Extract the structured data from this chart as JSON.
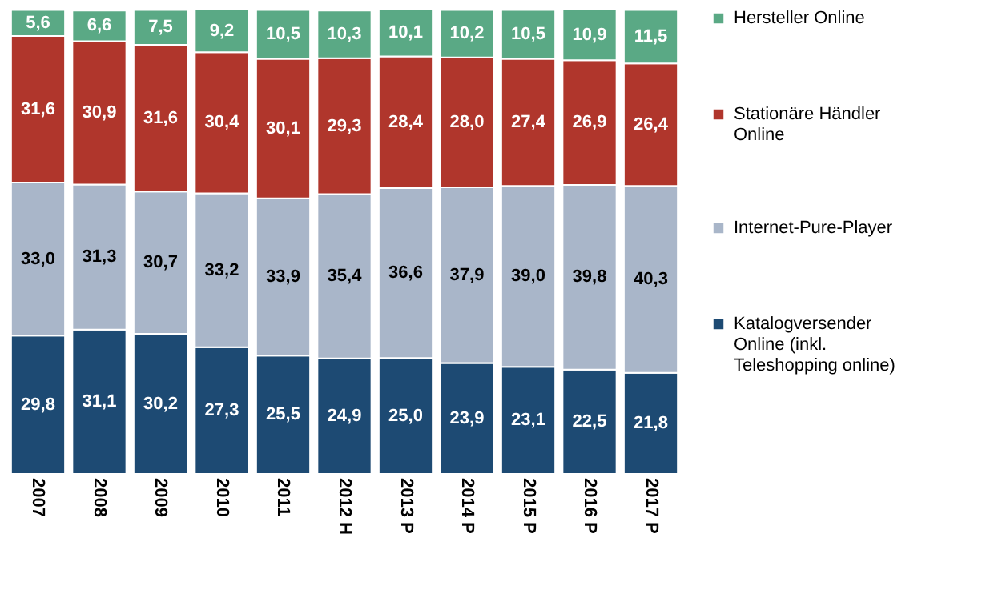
{
  "chart_data": {
    "type": "bar",
    "stacked": true,
    "legend": "right",
    "categories": [
      "2007",
      "2008",
      "2009",
      "2010",
      "2011",
      "2012 H",
      "2013 P",
      "2014 P",
      "2015 P",
      "2016 P",
      "2017 P"
    ],
    "series": [
      {
        "name": "Katalogversender Online (inkl. Teleshopping online)",
        "color": "#1d4a73",
        "values": [
          29.8,
          31.1,
          30.2,
          27.3,
          25.5,
          24.9,
          25.0,
          23.9,
          23.1,
          22.5,
          21.8
        ],
        "value_labels": [
          "29,8",
          "31,1",
          "30,2",
          "27,3",
          "25,5",
          "24,9",
          "25,0",
          "23,9",
          "23,1",
          "22,5",
          "21,8"
        ]
      },
      {
        "name": "Internet-Pure-Player",
        "color": "#a9b6c9",
        "values": [
          33.0,
          31.3,
          30.7,
          33.2,
          33.9,
          35.4,
          36.6,
          37.9,
          39.0,
          39.8,
          40.3
        ],
        "value_labels": [
          "33,0",
          "31,3",
          "30,7",
          "33,2",
          "33,9",
          "35,4",
          "36,6",
          "37,9",
          "39,0",
          "39,8",
          "40,3"
        ]
      },
      {
        "name": "Stationäre Händler Online",
        "color": "#b0362c",
        "values": [
          31.6,
          30.9,
          31.6,
          30.4,
          30.1,
          29.3,
          28.4,
          28.0,
          27.4,
          26.9,
          26.4
        ],
        "value_labels": [
          "31,6",
          "30,9",
          "31,6",
          "30,4",
          "30,1",
          "29,3",
          "28,4",
          "28,0",
          "27,4",
          "26,9",
          "26,4"
        ]
      },
      {
        "name": "Hersteller Online",
        "color": "#5aa985",
        "values": [
          5.6,
          6.6,
          7.5,
          9.2,
          10.5,
          10.3,
          10.1,
          10.2,
          10.5,
          10.9,
          11.5
        ],
        "value_labels": [
          "5,6",
          "6,6",
          "7,5",
          "9,2",
          "10,5",
          "10,3",
          "10,1",
          "10,2",
          "10,5",
          "10,9",
          "11,5"
        ]
      }
    ]
  }
}
